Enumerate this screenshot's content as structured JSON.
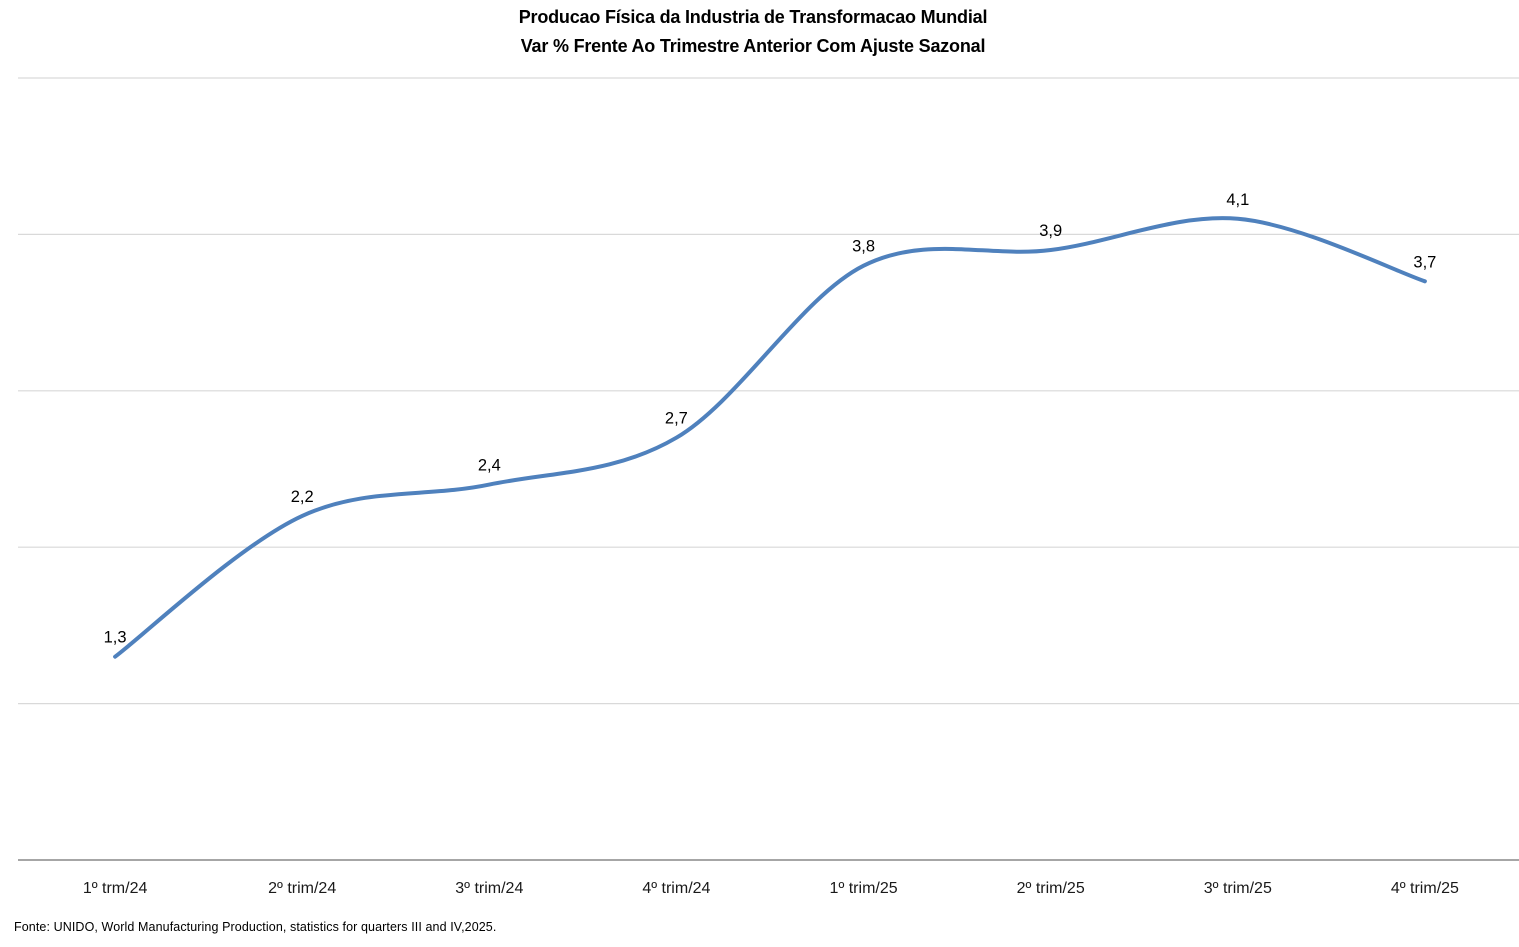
{
  "chart_data": {
    "type": "line",
    "title": "Producao Física da Industria de Transformacao Mundial",
    "subtitle": "Var % Frente Ao Trimestre Anterior Com Ajuste Sazonal",
    "categories": [
      "1º trm/24",
      "2º trim/24",
      "3º trim/24",
      "4º trim/24",
      "1º trim/25",
      "2º trim/25",
      "3º trim/25",
      "4º trim/25"
    ],
    "series": [
      {
        "name": "Var % frente ao trimestre anterior",
        "values": [
          1.3,
          2.2,
          2.4,
          2.7,
          3.8,
          3.9,
          4.1,
          3.7
        ]
      }
    ],
    "value_labels": [
      "1,3",
      "2,2",
      "2,4",
      "2,7",
      "3,8",
      "3,9",
      "4,1",
      "3,7"
    ],
    "xlabel": "",
    "ylabel": "",
    "ylim": [
      0,
      5
    ],
    "gridline_step": 1,
    "grid": true,
    "legend_position": "none",
    "smooth": true,
    "colors": {
      "line": "#4F81BD",
      "gridline": "#D9D9D9",
      "axis_line": "#A6A6A6",
      "data_label": "#000000",
      "axis_label": "#1A1A1A"
    }
  },
  "footer": {
    "source_note": "Fonte: UNIDO, World Manufacturing Production, statistics for quarters III and IV,2025."
  }
}
